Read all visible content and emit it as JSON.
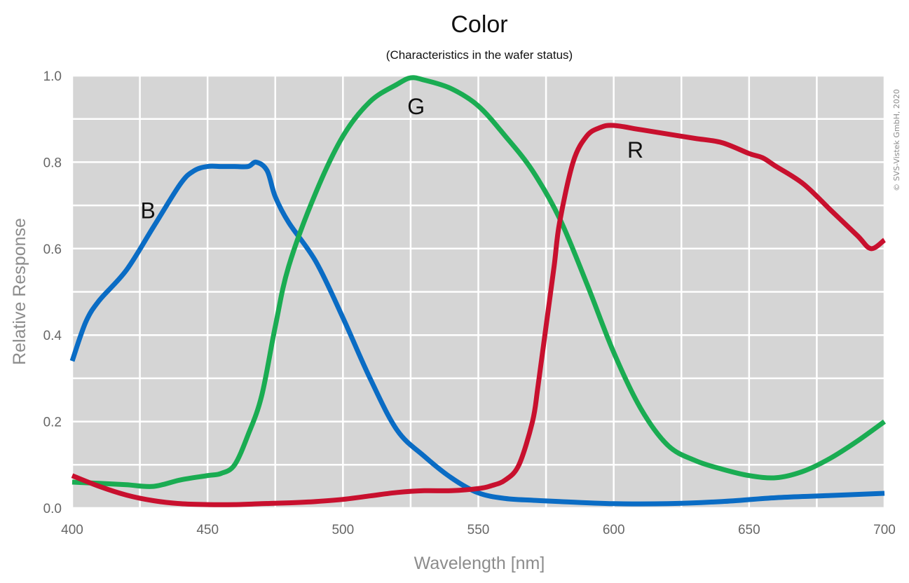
{
  "chart_data": {
    "type": "line",
    "title": "Color",
    "subtitle": "(Characteristics in the wafer status)",
    "xlabel": "Wavelength [nm]",
    "ylabel": "Relative Response",
    "xlim": [
      400,
      700
    ],
    "ylim": [
      0.0,
      1.0
    ],
    "x_ticks": [
      400,
      450,
      500,
      550,
      600,
      650,
      700
    ],
    "y_ticks": [
      "0.0",
      "0.2",
      "0.4",
      "0.6",
      "0.8",
      "1.0"
    ],
    "grid": true,
    "copyright": "© SVS-Vistek GmbH, 2020",
    "series": [
      {
        "name": "B",
        "color": "#0a6cc4",
        "label_at": [
          428,
          0.69
        ],
        "x": [
          400,
          405,
          410,
          420,
          430,
          440,
          445,
          450,
          455,
          460,
          465,
          468,
          472,
          475,
          480,
          490,
          500,
          510,
          520,
          530,
          540,
          550,
          560,
          570,
          580,
          600,
          620,
          640,
          660,
          680,
          700
        ],
        "y": [
          0.34,
          0.43,
          0.48,
          0.55,
          0.65,
          0.75,
          0.78,
          0.79,
          0.79,
          0.79,
          0.79,
          0.8,
          0.78,
          0.72,
          0.66,
          0.57,
          0.44,
          0.3,
          0.18,
          0.12,
          0.07,
          0.035,
          0.022,
          0.018,
          0.015,
          0.01,
          0.01,
          0.015,
          0.024,
          0.029,
          0.034
        ]
      },
      {
        "name": "G",
        "color": "#1aac52",
        "label_at": [
          527,
          0.93
        ],
        "x": [
          400,
          410,
          420,
          430,
          440,
          450,
          455,
          460,
          465,
          470,
          475,
          480,
          490,
          500,
          510,
          520,
          525,
          530,
          540,
          550,
          560,
          570,
          580,
          590,
          600,
          610,
          620,
          630,
          640,
          650,
          660,
          670,
          680,
          690,
          700
        ],
        "y": [
          0.06,
          0.057,
          0.054,
          0.05,
          0.065,
          0.075,
          0.08,
          0.1,
          0.17,
          0.26,
          0.42,
          0.56,
          0.73,
          0.86,
          0.94,
          0.98,
          0.995,
          0.99,
          0.97,
          0.93,
          0.86,
          0.78,
          0.67,
          0.52,
          0.36,
          0.23,
          0.145,
          0.11,
          0.09,
          0.075,
          0.07,
          0.085,
          0.115,
          0.155,
          0.2
        ]
      },
      {
        "name": "R",
        "color": "#c8102e",
        "label_at": [
          608,
          0.83
        ],
        "x": [
          400,
          410,
          420,
          430,
          440,
          450,
          460,
          470,
          480,
          490,
          500,
          510,
          520,
          530,
          540,
          550,
          555,
          560,
          565,
          570,
          572,
          575,
          578,
          580,
          585,
          590,
          595,
          600,
          610,
          620,
          630,
          640,
          650,
          655,
          660,
          670,
          680,
          690,
          695,
          700
        ],
        "y": [
          0.075,
          0.05,
          0.03,
          0.017,
          0.01,
          0.008,
          0.008,
          0.01,
          0.012,
          0.015,
          0.02,
          0.028,
          0.036,
          0.04,
          0.04,
          0.045,
          0.052,
          0.065,
          0.1,
          0.2,
          0.28,
          0.42,
          0.56,
          0.66,
          0.8,
          0.86,
          0.88,
          0.885,
          0.875,
          0.865,
          0.855,
          0.845,
          0.82,
          0.81,
          0.79,
          0.75,
          0.69,
          0.63,
          0.6,
          0.62
        ]
      }
    ]
  }
}
